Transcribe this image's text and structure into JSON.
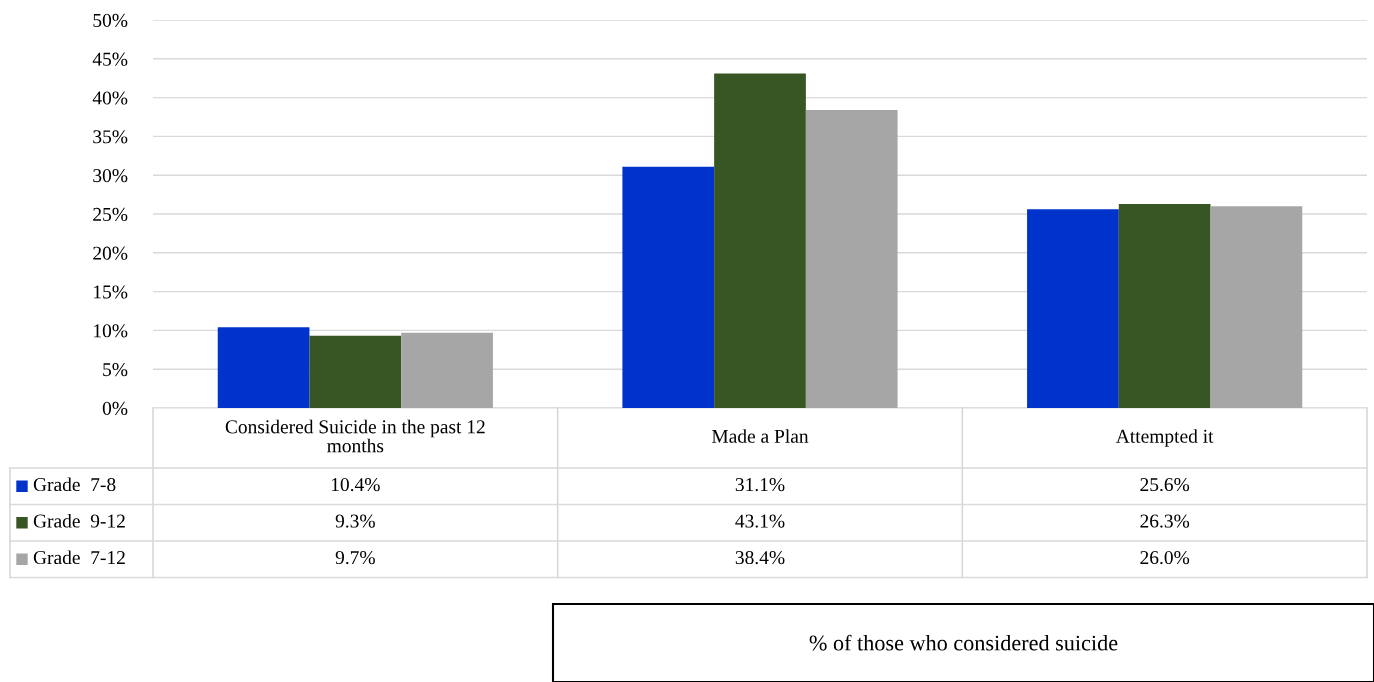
{
  "chart_data": {
    "type": "bar",
    "categories": [
      "Considered Suicide in the past 12 months",
      "Made a Plan",
      "Attempted it"
    ],
    "series": [
      {
        "name": "Grade  7-8",
        "color": "#0033cc",
        "values": [
          10.4,
          31.1,
          25.6
        ],
        "value_labels": [
          "10.4%",
          "31.1%",
          "25.6%"
        ]
      },
      {
        "name": "Grade  9-12",
        "color": "#375623",
        "values": [
          9.3,
          43.1,
          26.3
        ],
        "value_labels": [
          "9.3%",
          "43.1%",
          "26.3%"
        ]
      },
      {
        "name": "Grade  7-12",
        "color": "#a6a6a6",
        "values": [
          9.7,
          38.4,
          26.0
        ],
        "value_labels": [
          "9.7%",
          "38.4%",
          "26.0%"
        ]
      }
    ],
    "ylim": [
      0,
      50
    ],
    "yticks": [
      {
        "value": 0,
        "label": "0%"
      },
      {
        "value": 5,
        "label": "5%"
      },
      {
        "value": 10,
        "label": "10%"
      },
      {
        "value": 15,
        "label": "15%"
      },
      {
        "value": 20,
        "label": "20%"
      },
      {
        "value": 25,
        "label": "25%"
      },
      {
        "value": 30,
        "label": "30%"
      },
      {
        "value": 35,
        "label": "35%"
      },
      {
        "value": 40,
        "label": "40%"
      },
      {
        "value": 45,
        "label": "45%"
      },
      {
        "value": 50,
        "label": "50%"
      }
    ],
    "grid": "y",
    "legend": "bottom left",
    "annotations": [
      "% of those who considered suicide"
    ]
  }
}
